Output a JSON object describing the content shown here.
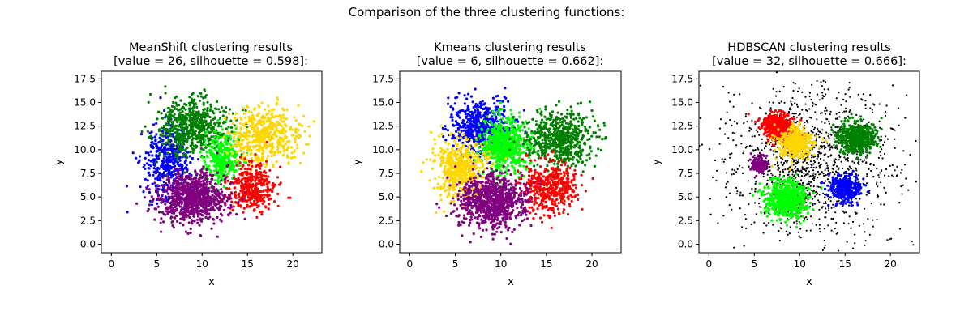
{
  "figure": {
    "suptitle": "Comparison of the three clustering functions:"
  },
  "chart_data": [
    {
      "type": "scatter",
      "title_line1": "MeanShift clustering results",
      "title_line2": "[value = 26, silhouette = 0.598]:",
      "xlabel": "x",
      "ylabel": "y",
      "xlim": [
        -1.1,
        23.2
      ],
      "ylim": [
        -0.9,
        18.3
      ],
      "xticks": [
        "0",
        "5",
        "10",
        "15",
        "20"
      ],
      "yticks": [
        "0.0",
        "2.5",
        "5.0",
        "7.5",
        "10.0",
        "12.5",
        "15.0",
        "17.5"
      ],
      "grid": false,
      "legend": "none",
      "clusters": [
        {
          "color": "#0000ff",
          "center": [
            6,
            8.5
          ],
          "spread": [
            1.3,
            1.9
          ],
          "points": 420
        },
        {
          "color": "#008000",
          "center": [
            9,
            12.5
          ],
          "spread": [
            1.9,
            1.5
          ],
          "points": 620
        },
        {
          "color": "#00ff00",
          "center": [
            12.2,
            9
          ],
          "spread": [
            1.1,
            1.4
          ],
          "points": 320
        },
        {
          "color": "#ffd700",
          "center": [
            16.8,
            11.5
          ],
          "spread": [
            1.8,
            1.5
          ],
          "points": 520
        },
        {
          "color": "#ff0000",
          "center": [
            15.5,
            6
          ],
          "spread": [
            1.3,
            1.2
          ],
          "points": 380
        },
        {
          "color": "#800080",
          "center": [
            9,
            4.8
          ],
          "spread": [
            1.8,
            1.3
          ],
          "points": 900
        }
      ]
    },
    {
      "type": "scatter",
      "title_line1": "Kmeans clustering results",
      "title_line2": "[value = 6, silhouette = 0.662]:",
      "xlabel": "x",
      "ylabel": "y",
      "xlim": [
        -1.1,
        23.2
      ],
      "ylim": [
        -0.9,
        18.3
      ],
      "xticks": [
        "0",
        "5",
        "10",
        "15",
        "20"
      ],
      "yticks": [
        "0.0",
        "2.5",
        "5.0",
        "7.5",
        "10.0",
        "12.5",
        "15.0",
        "17.5"
      ],
      "grid": false,
      "legend": "none",
      "clusters": [
        {
          "color": "#0000ff",
          "center": [
            7.6,
            12.5
          ],
          "spread": [
            1.5,
            1.4
          ],
          "points": 560
        },
        {
          "color": "#00ff00",
          "center": [
            10.5,
            10.5
          ],
          "spread": [
            1.3,
            1.5
          ],
          "points": 650
        },
        {
          "color": "#008000",
          "center": [
            16.5,
            11.2
          ],
          "spread": [
            1.8,
            1.4
          ],
          "points": 600
        },
        {
          "color": "#ffd700",
          "center": [
            5.5,
            8
          ],
          "spread": [
            1.4,
            1.6
          ],
          "points": 560
        },
        {
          "color": "#ff0000",
          "center": [
            15.3,
            6
          ],
          "spread": [
            1.5,
            1.3
          ],
          "points": 460
        },
        {
          "color": "#800080",
          "center": [
            9,
            4.6
          ],
          "spread": [
            1.8,
            1.4
          ],
          "points": 900
        }
      ]
    },
    {
      "type": "scatter",
      "title_line1": "HDBSCAN clustering results",
      "title_line2": "[value = 32, silhouette = 0.666]:",
      "xlabel": "x",
      "ylabel": "y",
      "xlim": [
        -1.1,
        23.2
      ],
      "ylim": [
        -0.9,
        18.3
      ],
      "xticks": [
        "0",
        "5",
        "10",
        "15",
        "20"
      ],
      "yticks": [
        "0.0",
        "2.5",
        "5.0",
        "7.5",
        "10.0",
        "12.5",
        "15.0",
        "17.5"
      ],
      "grid": false,
      "legend": "none",
      "noise_color": "#000000",
      "clusters": [
        {
          "color": "#000000",
          "center": [
            11,
            8.5
          ],
          "spread": [
            4.6,
            3.8
          ],
          "points": 1300
        },
        {
          "color": "#ff0000",
          "center": [
            7.5,
            12.5
          ],
          "spread": [
            0.8,
            0.7
          ],
          "points": 420
        },
        {
          "color": "#ffd700",
          "center": [
            9.6,
            10.7
          ],
          "spread": [
            0.9,
            0.8
          ],
          "points": 440
        },
        {
          "color": "#008000",
          "center": [
            16.3,
            11.2
          ],
          "spread": [
            1.0,
            0.9
          ],
          "points": 520
        },
        {
          "color": "#800080",
          "center": [
            5.6,
            8.4
          ],
          "spread": [
            0.45,
            0.45
          ],
          "points": 120
        },
        {
          "color": "#0000ff",
          "center": [
            15,
            6
          ],
          "spread": [
            0.85,
            0.7
          ],
          "points": 320
        },
        {
          "color": "#00ff00",
          "center": [
            8.6,
            4.7
          ],
          "spread": [
            1.1,
            1.0
          ],
          "points": 720
        }
      ]
    }
  ]
}
